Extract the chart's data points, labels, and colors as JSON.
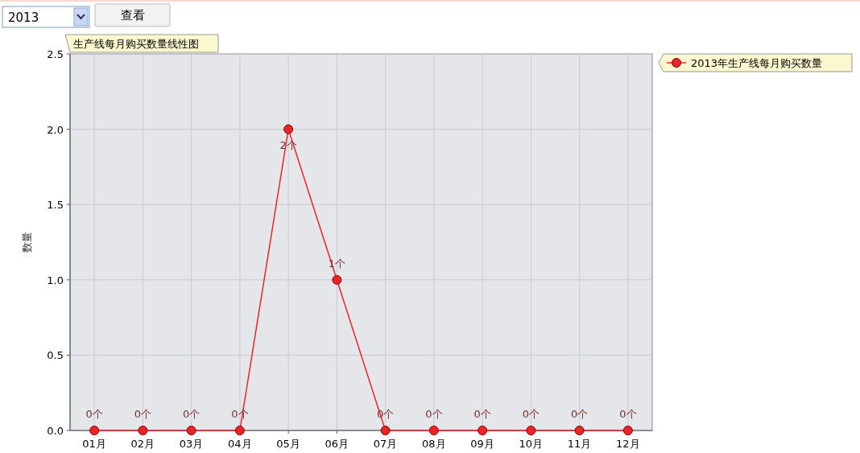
{
  "chart_data": {
    "type": "line",
    "title": "生产线每月购买数量线性图",
    "ylabel": "数量",
    "categories": [
      "01月",
      "02月",
      "03月",
      "04月",
      "05月",
      "06月",
      "07月",
      "08月",
      "09月",
      "10月",
      "11月",
      "12月"
    ],
    "series": [
      {
        "name": "2013年生产线每月购买数量",
        "color": "#e8262a",
        "values": [
          0,
          0,
          0,
          0,
          2,
          1,
          0,
          0,
          0,
          0,
          0,
          0
        ],
        "value_labels": [
          "0个",
          "0个",
          "0个",
          "0个",
          "2个",
          "1个",
          "0个",
          "0个",
          "0个",
          "0个",
          "0个",
          "0个"
        ]
      }
    ],
    "ylim": [
      0,
      2.5
    ],
    "yticks": [
      {
        "value": 0,
        "label": "0.0"
      },
      {
        "value": 0.5,
        "label": "0.5"
      },
      {
        "value": 1,
        "label": "1.0"
      },
      {
        "value": 1.5,
        "label": "1.5"
      },
      {
        "value": 2,
        "label": "2.0"
      },
      {
        "value": 2.5,
        "label": "2.5"
      }
    ],
    "grid": true,
    "legend": "top right",
    "marker": "circle",
    "annotations": [
      "2013",
      "查看"
    ]
  }
}
